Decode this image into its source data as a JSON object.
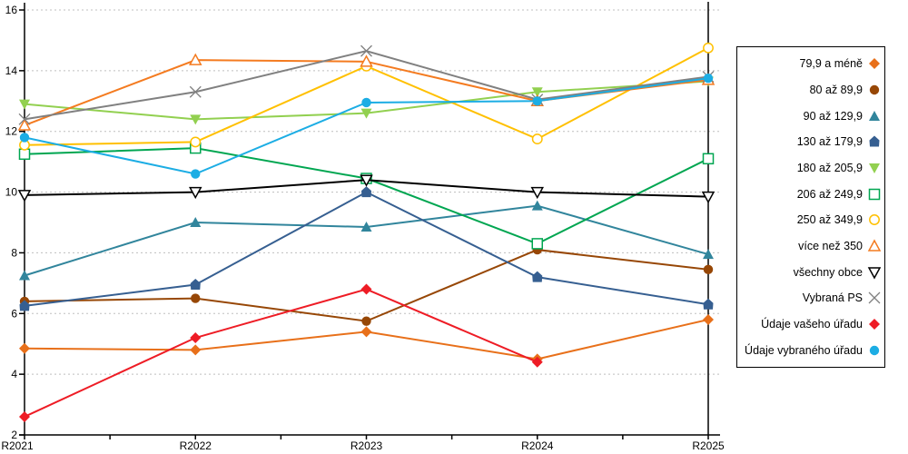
{
  "chart_data": {
    "type": "line",
    "title": "",
    "xlabel": "",
    "ylabel": "",
    "categories": [
      "R2021",
      "R2022",
      "R2023",
      "R2024",
      "R2025"
    ],
    "y_axis": {
      "min": 2,
      "max": 16,
      "step": 2,
      "tick_labels": [
        "2",
        "4",
        "6",
        "8",
        "10",
        "12",
        "14",
        "16"
      ]
    },
    "grid": true,
    "grid_color": "#bfbfbf",
    "axis_color": "#000000",
    "legend_position": "right",
    "series": [
      {
        "name": "79,9 a méně",
        "color": "#E8701A",
        "marker": "diamond",
        "open": false,
        "values": [
          4.85,
          4.8,
          5.4,
          4.5,
          5.8
        ]
      },
      {
        "name": "80 až 89,9",
        "color": "#974706",
        "marker": "circle",
        "open": false,
        "values": [
          6.4,
          6.5,
          5.75,
          8.1,
          7.45
        ]
      },
      {
        "name": "90 až 129,9",
        "color": "#31859C",
        "marker": "triangle-up",
        "open": false,
        "values": [
          7.25,
          9.0,
          8.85,
          9.55,
          7.95
        ]
      },
      {
        "name": "130 až 179,9",
        "color": "#365F91",
        "marker": "pentagon",
        "open": false,
        "values": [
          6.25,
          6.95,
          10.0,
          7.2,
          6.3
        ]
      },
      {
        "name": "180 až 205,9",
        "color": "#92D050",
        "marker": "triangle-down",
        "open": false,
        "values": [
          12.9,
          12.4,
          12.6,
          13.3,
          13.65
        ]
      },
      {
        "name": "206 až 249,9",
        "color": "#00A651",
        "marker": "square",
        "open": true,
        "values": [
          11.25,
          11.45,
          10.45,
          8.3,
          11.1
        ]
      },
      {
        "name": "250 až 349,9",
        "color": "#FFC000",
        "marker": "circle",
        "open": true,
        "values": [
          11.55,
          11.65,
          14.15,
          11.75,
          14.75
        ]
      },
      {
        "name": "více než 350",
        "color": "#F47B20",
        "marker": "triangle-up",
        "open": true,
        "values": [
          12.2,
          14.35,
          14.3,
          13.0,
          13.7
        ]
      },
      {
        "name": "všechny obce",
        "color": "#000000",
        "marker": "triangle-down",
        "open": true,
        "values": [
          9.9,
          10.0,
          10.4,
          10.0,
          9.85
        ]
      },
      {
        "name": "Vybraná PS",
        "color": "#808080",
        "marker": "x",
        "open": true,
        "values": [
          12.4,
          13.3,
          14.65,
          13.05,
          13.8
        ]
      },
      {
        "name": "Údaje vašeho úřadu",
        "color": "#EE1C25",
        "marker": "diamond",
        "open": false,
        "values": [
          2.6,
          5.2,
          6.8,
          4.4,
          null
        ]
      },
      {
        "name": "Údaje vybraného úřadu",
        "color": "#1CADE4",
        "marker": "circle",
        "open": false,
        "values": [
          11.8,
          10.6,
          12.95,
          13.0,
          13.75
        ]
      }
    ]
  }
}
